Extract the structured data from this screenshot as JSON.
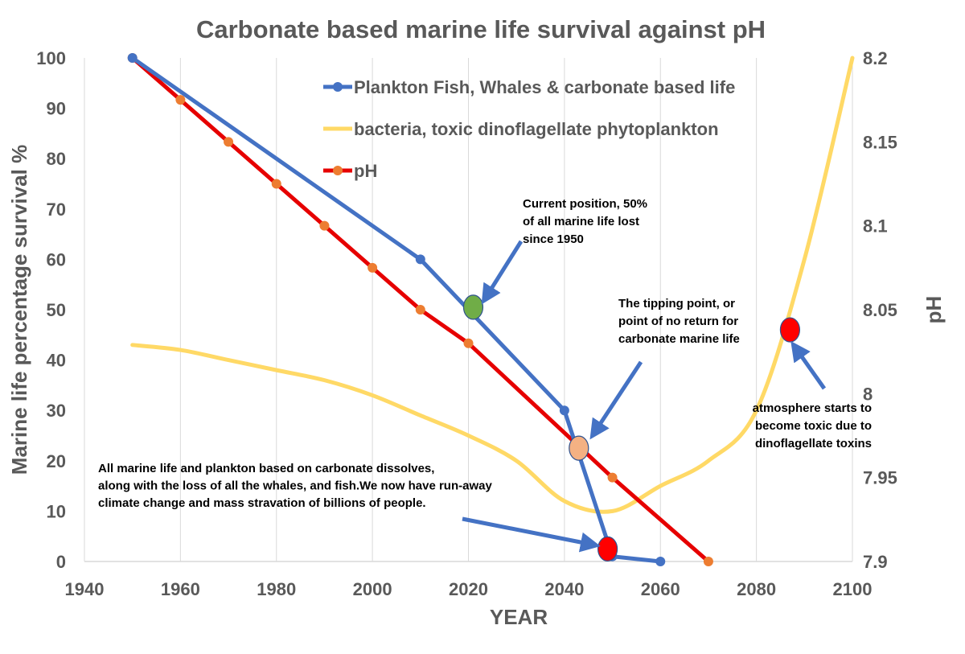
{
  "chart_data": {
    "type": "line",
    "title": "Carbonate based marine life survival against pH",
    "xlabel": "YEAR",
    "ylabel": "Marine life  percentage survival   %",
    "y2label": "pH",
    "xlim": [
      1940,
      2100
    ],
    "ylim": [
      0,
      100
    ],
    "y2lim": [
      7.9,
      8.2
    ],
    "x_ticks": [
      "1940",
      "1960",
      "1980",
      "2000",
      "2020",
      "2040",
      "2060",
      "2080",
      "2100"
    ],
    "y_ticks": [
      "0",
      "10",
      "20",
      "30",
      "40",
      "50",
      "60",
      "70",
      "80",
      "90",
      "100"
    ],
    "y2_ticks": [
      "7.9",
      "7.95",
      "8",
      "8.05",
      "8.1",
      "8.15",
      "8.2"
    ],
    "series": [
      {
        "name": "Plankton Fish, Whales & carbonate based life",
        "axis": "left",
        "color": "#4472C4",
        "marker": "circle",
        "marker_color": "#4472C4",
        "x": [
          1950,
          2010,
          2040,
          2050,
          2060
        ],
        "values": [
          100,
          60,
          30,
          1,
          0
        ]
      },
      {
        "name": "bacteria, toxic dinoflagellate phytoplankton",
        "axis": "left",
        "color": "#FFD966",
        "marker": "none",
        "x": [
          1950,
          1960,
          1970,
          1980,
          1990,
          2000,
          2010,
          2020,
          2030,
          2040,
          2050,
          2060,
          2070,
          2080,
          2090,
          2100
        ],
        "values": [
          43,
          42,
          40,
          38,
          36,
          33,
          29,
          25,
          20,
          12,
          10,
          15,
          20,
          30,
          60,
          100
        ]
      },
      {
        "name": "pH",
        "axis": "right",
        "color": "#E60000",
        "marker": "circle",
        "marker_color": "#ED7D31",
        "x": [
          1950,
          1960,
          1970,
          1980,
          1990,
          2000,
          2010,
          2020,
          2050,
          2070
        ],
        "values": [
          8.2,
          8.175,
          8.15,
          8.125,
          8.1,
          8.075,
          8.05,
          8.03,
          7.95,
          7.9
        ]
      }
    ],
    "highlight_points": [
      {
        "name": "current-position-marker",
        "x": 2021,
        "y": 50.5,
        "color": "#70AD47"
      },
      {
        "name": "tipping-point-marker",
        "x": 2043,
        "y": 22.5,
        "color": "#F4B183"
      },
      {
        "name": "collapse-marker",
        "x": 2049,
        "y": 2.5,
        "color": "#FF0000"
      },
      {
        "name": "toxic-atmosphere-marker",
        "x": 2087,
        "y": 46,
        "color": "#FF0000"
      }
    ],
    "annotations": [
      {
        "name": "current-position",
        "lines": [
          "Current position, 50%",
          "of all marine life lost",
          "since 1950"
        ]
      },
      {
        "name": "tipping-point",
        "lines": [
          "The tipping point, or",
          "point of no return for",
          "carbonate marine life"
        ]
      },
      {
        "name": "toxic-atmosphere",
        "lines": [
          "atmosphere starts to",
          "become toxic due to",
          "dinoflagellate toxins"
        ]
      },
      {
        "name": "collapse",
        "lines": [
          "All marine life and plankton based on carbonate dissolves,",
          "along with the loss of all the whales, and fish.We now have run-away",
          "climate change and mass stravation of billions of people."
        ]
      }
    ],
    "grid": true,
    "legend_position": "top-center"
  },
  "colors": {
    "text": "#595959",
    "grid": "#D9D9D9",
    "arrow": "#4472C4"
  }
}
